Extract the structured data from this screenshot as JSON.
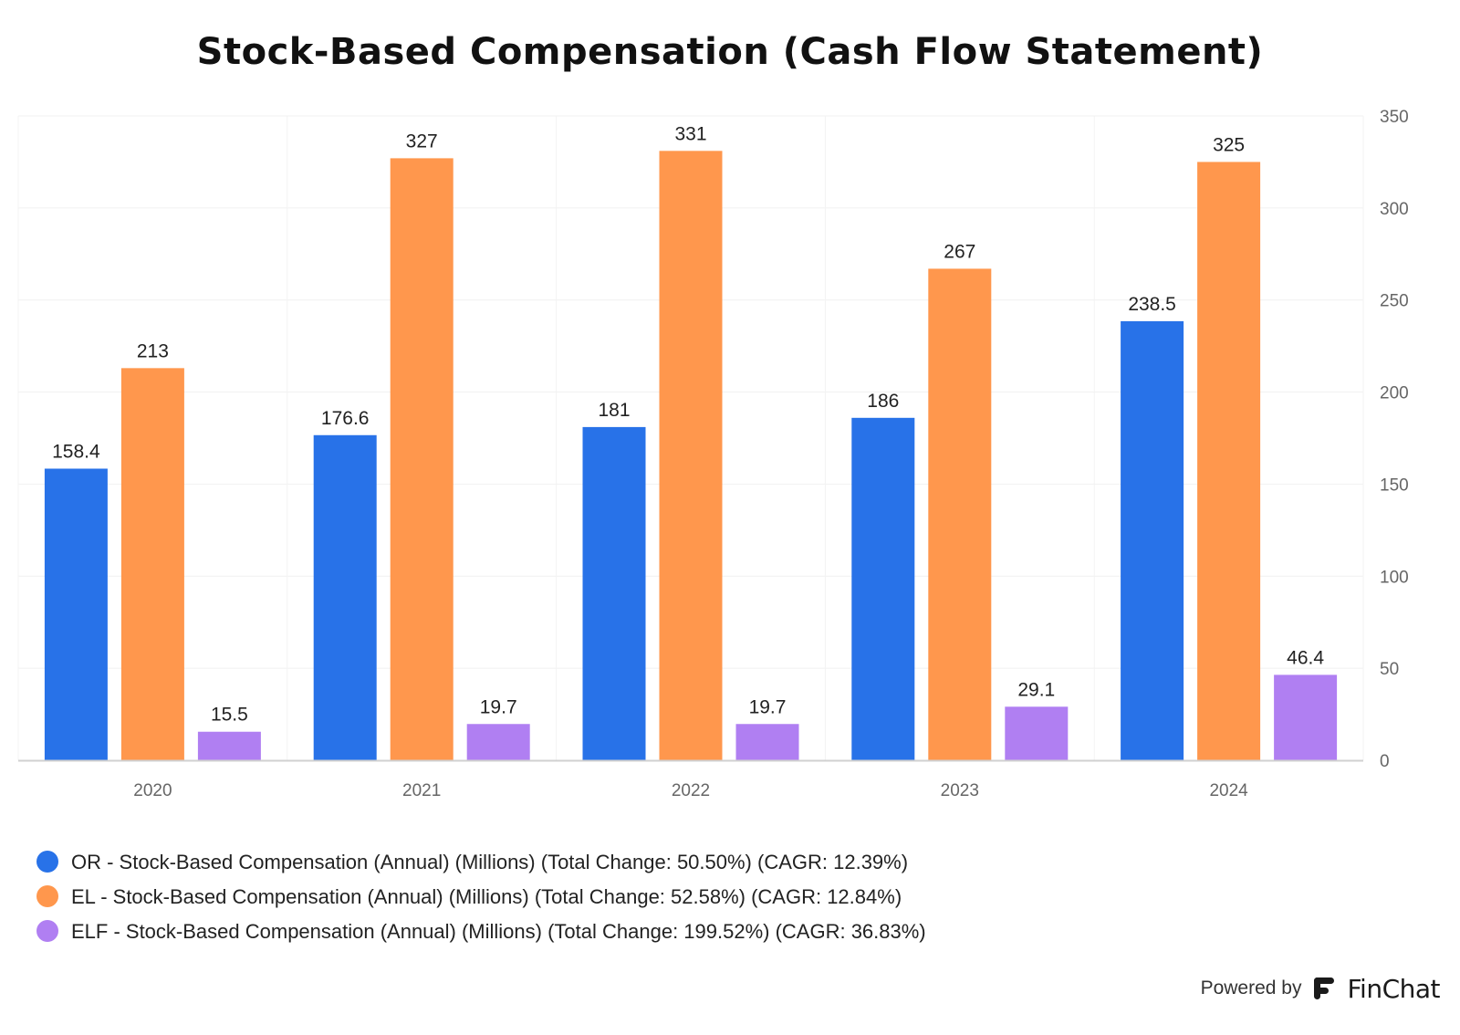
{
  "chart_data": {
    "type": "bar",
    "title": "Stock-Based Compensation (Cash Flow Statement)",
    "categories": [
      "2020",
      "2021",
      "2022",
      "2023",
      "2024"
    ],
    "series": [
      {
        "name": "OR - Stock-Based Compensation (Annual) (Millions) (Total Change: 50.50%) (CAGR: 12.39%)",
        "color": "#2872e8",
        "values": [
          158.4,
          176.6,
          181,
          186,
          238.5
        ],
        "labels": [
          "158.4",
          "176.6",
          "181",
          "186",
          "238.5"
        ]
      },
      {
        "name": "EL - Stock-Based Compensation (Annual) (Millions) (Total Change: 52.58%) (CAGR: 12.84%)",
        "color": "#ff974d",
        "values": [
          213,
          327,
          331,
          267,
          325
        ],
        "labels": [
          "213",
          "327",
          "331",
          "267",
          "325"
        ]
      },
      {
        "name": "ELF - Stock-Based Compensation (Annual) (Millions) (Total Change: 199.52%) (CAGR: 36.83%)",
        "color": "#b07ff2",
        "values": [
          15.5,
          19.7,
          19.7,
          29.1,
          46.4
        ],
        "labels": [
          "15.5",
          "19.7",
          "19.7",
          "29.1",
          "46.4"
        ]
      }
    ],
    "ylim": [
      0,
      350
    ],
    "yticks": [
      0,
      50,
      100,
      150,
      200,
      250,
      300,
      350
    ],
    "y_axis_side": "right",
    "grid": true,
    "legend_position": "bottom-left"
  },
  "footer": {
    "powered_by": "Powered by",
    "brand": "FinChat",
    "logo_icon": "finchat-logo-icon"
  }
}
